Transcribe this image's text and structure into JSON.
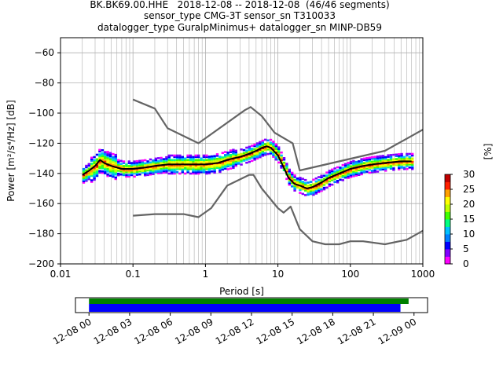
{
  "title": {
    "line1": "BK.BK69.00.HHE   2018-12-08 -- 2018-12-08  (46/46 segments)",
    "line2": "sensor_type CMG-3T sensor_sn T310033",
    "line3": "datalogger_type GuralpMinimus+ datalogger_sn MINP-DB59"
  },
  "chart_data": [
    {
      "type": "heatmap",
      "xlabel": "Period [s]",
      "ylabel": "Power [m²/s⁴/Hz] [dB]",
      "xscale": "log",
      "xlim": [
        0.01,
        1000
      ],
      "ylim": [
        -200,
        -50
      ],
      "x_ticks": [
        0.01,
        0.1,
        1,
        10,
        100,
        1000
      ],
      "x_tick_labels": [
        "0.01",
        "0.1",
        "1",
        "10",
        "100",
        "1000"
      ],
      "y_ticks": [
        -200,
        -180,
        -160,
        -140,
        -120,
        -100,
        -80,
        -60
      ],
      "y_tick_labels": [
        "−200",
        "−180",
        "−160",
        "−140",
        "−120",
        "−100",
        "−80",
        "−60"
      ],
      "grid": true,
      "colorbar": {
        "label": "[%]",
        "range": [
          0,
          30
        ],
        "ticks": [
          0,
          5,
          10,
          15,
          20,
          25,
          30
        ],
        "colormap": [
          "#ff00ff",
          "#8000ff",
          "#0000ff",
          "#0080ff",
          "#00c0ff",
          "#00ff80",
          "#40ff00",
          "#c0ff00",
          "#ffff00",
          "#ffa000",
          "#ff2000",
          "#c00000"
        ]
      },
      "series": [
        {
          "color": "#000000",
          "x": [
            0.02,
            0.025,
            0.03,
            0.035,
            0.04,
            0.05,
            0.07,
            0.1,
            0.15,
            0.2,
            0.3,
            0.5,
            0.8,
            1.0,
            1.5,
            2.0,
            3.0,
            4.0,
            5.0,
            6.0,
            7.0,
            8.0,
            10.0,
            12.0,
            14.0,
            17.0,
            20.0,
            25.0,
            30.0,
            40.0,
            50.0,
            70.0,
            100.0,
            150.0,
            200.0,
            300.0,
            500.0,
            700.0
          ],
          "y": [
            -141,
            -138,
            -135,
            -131,
            -133,
            -135,
            -137,
            -137,
            -136,
            -135,
            -134,
            -134,
            -134,
            -134,
            -133,
            -131,
            -129,
            -127,
            -125,
            -123,
            -122,
            -123,
            -128,
            -136,
            -143,
            -147,
            -148,
            -150,
            -149,
            -146,
            -143,
            -140,
            -137,
            -135,
            -134,
            -133,
            -132,
            -132
          ]
        },
        {
          "color": "#646464",
          "x": [
            0.1,
            0.2,
            0.3,
            0.8,
            3.5,
            4.2,
            6.0,
            9.0,
            16.0,
            20.0,
            300.0,
            1000.0
          ],
          "y": [
            -91,
            -97,
            -110,
            -120,
            -98,
            -96,
            -102,
            -113,
            -120,
            -138,
            -125,
            -111
          ]
        },
        {
          "color": "#646464",
          "x": [
            0.1,
            0.2,
            0.5,
            0.8,
            1.2,
            2.0,
            4.0,
            4.6,
            6.0,
            10.0,
            12.0,
            15.0,
            20.0,
            30.0,
            45.0,
            70.0,
            100.0,
            150.0,
            300.0,
            600.0,
            1000.0
          ],
          "y": [
            -168,
            -167,
            -167,
            -169,
            -163,
            -148,
            -141,
            -141,
            -150,
            -163,
            -166,
            -162,
            -177,
            -185,
            -187,
            -187,
            -185,
            -185,
            -187,
            -184,
            -178
          ]
        }
      ]
    },
    {
      "type": "bar",
      "tick_labels": [
        "12-08 00",
        "12-08 03",
        "12-08 06",
        "12-08 09",
        "12-08 12",
        "12-08 15",
        "12-08 18",
        "12-08 21",
        "12-09 00"
      ],
      "xlim_hours": [
        -1,
        25
      ],
      "series": [
        {
          "color": "#008000",
          "start_hour": 0,
          "end_hour": 23.6
        },
        {
          "color": "#0000ff",
          "start_hour": 0,
          "end_hour": 23.0
        }
      ]
    }
  ]
}
